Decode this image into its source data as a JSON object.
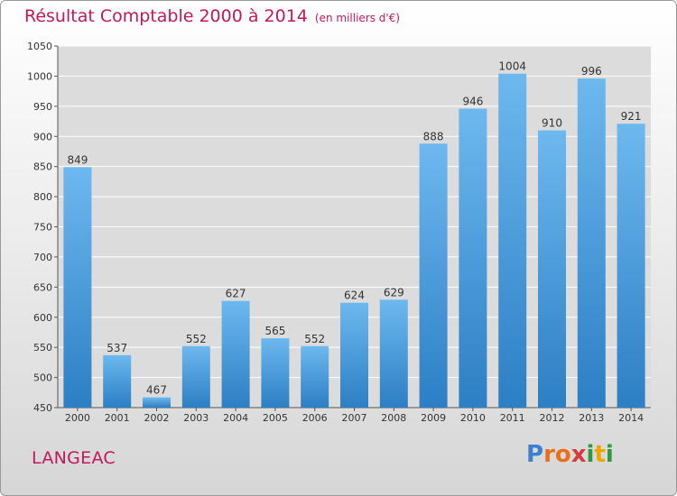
{
  "header": {
    "title": "Résultat Comptable 2000 à 2014",
    "subtitle": "(en milliers d'€)"
  },
  "footer": {
    "place": "LANGEAC",
    "logo": {
      "letters": [
        "P",
        "r",
        "o",
        "x",
        "i",
        "t",
        "i"
      ],
      "colors": [
        "#3b7fd1",
        "#e8701a",
        "#e8701a",
        "#d63a3a",
        "#2e9a3f",
        "#f0a500",
        "#2e9a3f"
      ]
    }
  },
  "colors": {
    "bar_light": "#6db8ef",
    "bar_dark": "#2c7fc4",
    "plot_bg": "#dcdcdc",
    "grid": "#ffffff"
  },
  "chart_data": {
    "type": "bar",
    "categories": [
      "2000",
      "2001",
      "2002",
      "2003",
      "2004",
      "2005",
      "2006",
      "2007",
      "2008",
      "2009",
      "2010",
      "2011",
      "2012",
      "2013",
      "2014"
    ],
    "values": [
      849,
      537,
      467,
      552,
      627,
      565,
      552,
      624,
      629,
      888,
      946,
      1004,
      910,
      996,
      921
    ],
    "ylim": [
      450,
      1050
    ],
    "yticks": [
      450,
      500,
      550,
      600,
      650,
      700,
      750,
      800,
      850,
      900,
      950,
      1000,
      1050
    ],
    "grid": true
  }
}
